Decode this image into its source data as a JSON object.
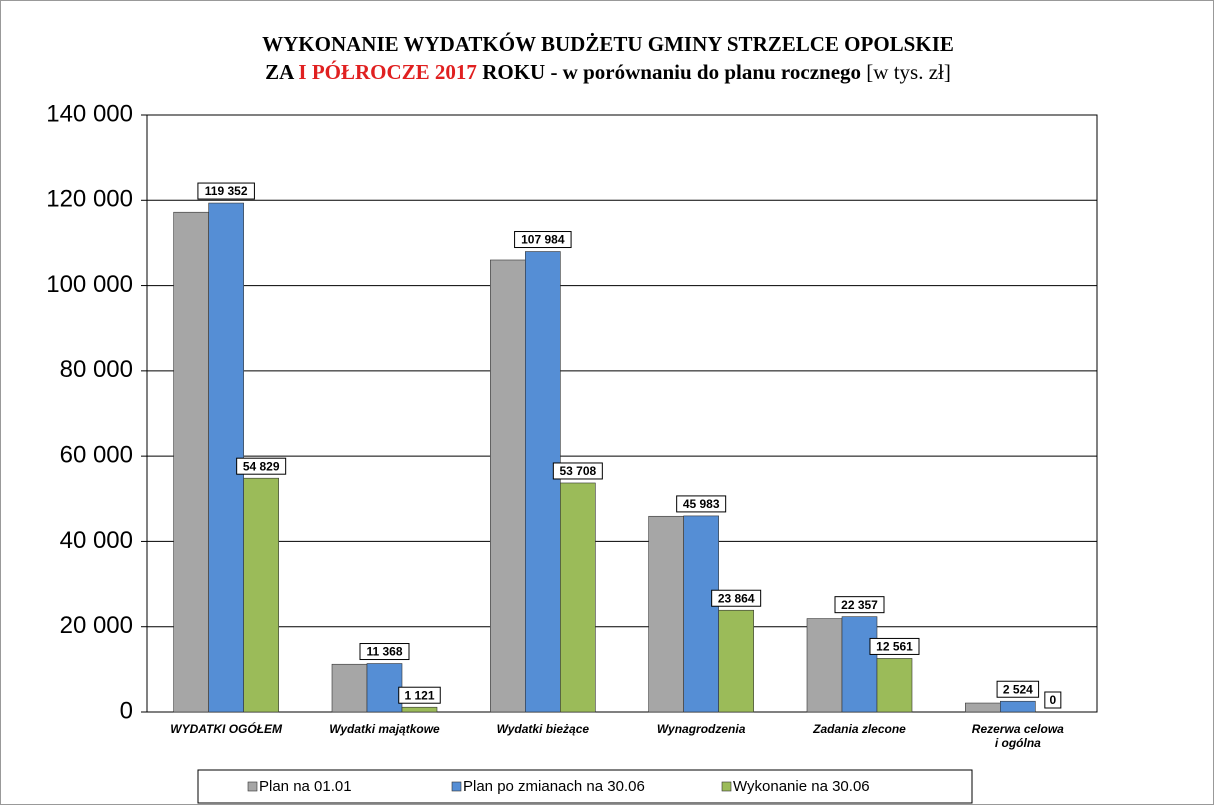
{
  "chart_data": {
    "type": "bar",
    "title": "WYKONANIE WYDATKÓW BUDŻETU GMINY STRZELCE OPOLSKIE",
    "subtitle_parts": [
      "ZA",
      "I PÓŁROCZE 2017",
      "ROKU - w porównaniu do planu rocznego",
      "[w tys. zł]"
    ],
    "categories": [
      "WYDATKI OGÓŁEM",
      "Wydatki majątkowe",
      "Wydatki bieżące",
      "Wynagrodzenia",
      "Zadania zlecone",
      "Rezerwa celowa\ni ogólna"
    ],
    "series": [
      {
        "name": "Plan na 01.01",
        "color": "#a6a6a6",
        "values": [
          117200,
          11200,
          106000,
          45900,
          21900,
          2100
        ]
      },
      {
        "name": "Plan po zmianach na 30.06",
        "color": "#558ed5",
        "values": [
          119352,
          11368,
          107984,
          45983,
          22357,
          2524
        ],
        "value_labels": [
          "119 352",
          "11 368",
          "107 984",
          "45 983",
          "22 357",
          "2 524"
        ]
      },
      {
        "name": "Wykonanie na 30.06",
        "color": "#9bbb59",
        "values": [
          54829,
          1121,
          53708,
          23864,
          12561,
          0
        ],
        "value_labels": [
          "54 829",
          "1 121",
          "53 708",
          "23 864",
          "12 561",
          "0"
        ]
      }
    ],
    "ylim": [
      0,
      140000
    ],
    "yticks": [
      0,
      {
        "value": 20000,
        "label": "20 000"
      },
      {
        "value": 40000,
        "label": "40 000"
      },
      {
        "value": 60000,
        "label": "60 000"
      },
      {
        "value": 80000,
        "label": "80 000"
      },
      {
        "value": 100000,
        "label": "100 000"
      },
      {
        "value": 120000,
        "label": "120 000"
      },
      {
        "value": 140000,
        "label": "140 000"
      }
    ],
    "grid": true,
    "legend": "bottom"
  }
}
